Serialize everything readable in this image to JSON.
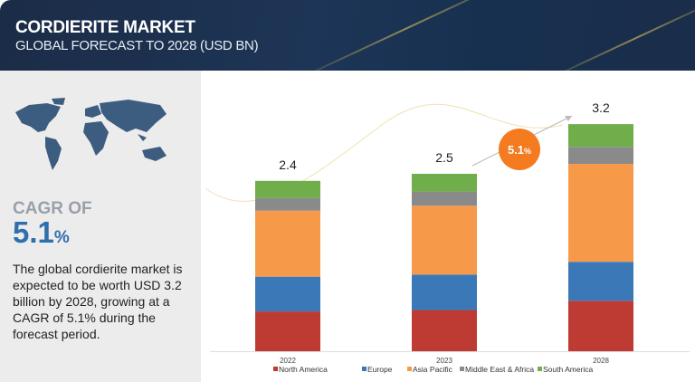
{
  "header": {
    "title": "CORDIERITE MARKET",
    "subtitle": "GLOBAL FORECAST TO 2028 (USD BN)"
  },
  "summary": {
    "cagr_label": "CAGR OF",
    "cagr_value": "5.1",
    "cagr_unit": "%",
    "description": "The global cordierite market is expected to be worth USD 3.2 billion by 2028, growing at a CAGR of 5.1% during the forecast period."
  },
  "colors": {
    "North America": "#bd3b33",
    "Europe": "#3a78b8",
    "Asia Pacific": "#f69a4a",
    "Middle East & Africa": "#8a8a8a",
    "South America": "#6fae4a",
    "badge": "#f47b20"
  },
  "chart_data": {
    "type": "bar",
    "stacked": true,
    "title": "CORDIERITE MARKET GLOBAL FORECAST TO 2028 (USD BN)",
    "categories": [
      "2022",
      "2023",
      "2028"
    ],
    "totals": [
      "2.4",
      "2.5",
      "3.2"
    ],
    "series": [
      {
        "name": "North America",
        "values": [
          0.56,
          0.58,
          0.71
        ]
      },
      {
        "name": "Europe",
        "values": [
          0.49,
          0.5,
          0.55
        ]
      },
      {
        "name": "Asia Pacific",
        "values": [
          0.93,
          0.97,
          1.38
        ]
      },
      {
        "name": "Middle East & Africa",
        "values": [
          0.18,
          0.2,
          0.24
        ]
      },
      {
        "name": "South America",
        "values": [
          0.24,
          0.25,
          0.32
        ]
      }
    ],
    "cagr_badge": "5.1",
    "cagr_badge_unit": "%",
    "ylim": [
      0,
      3.2
    ],
    "legend": "bottom",
    "grid": false
  }
}
